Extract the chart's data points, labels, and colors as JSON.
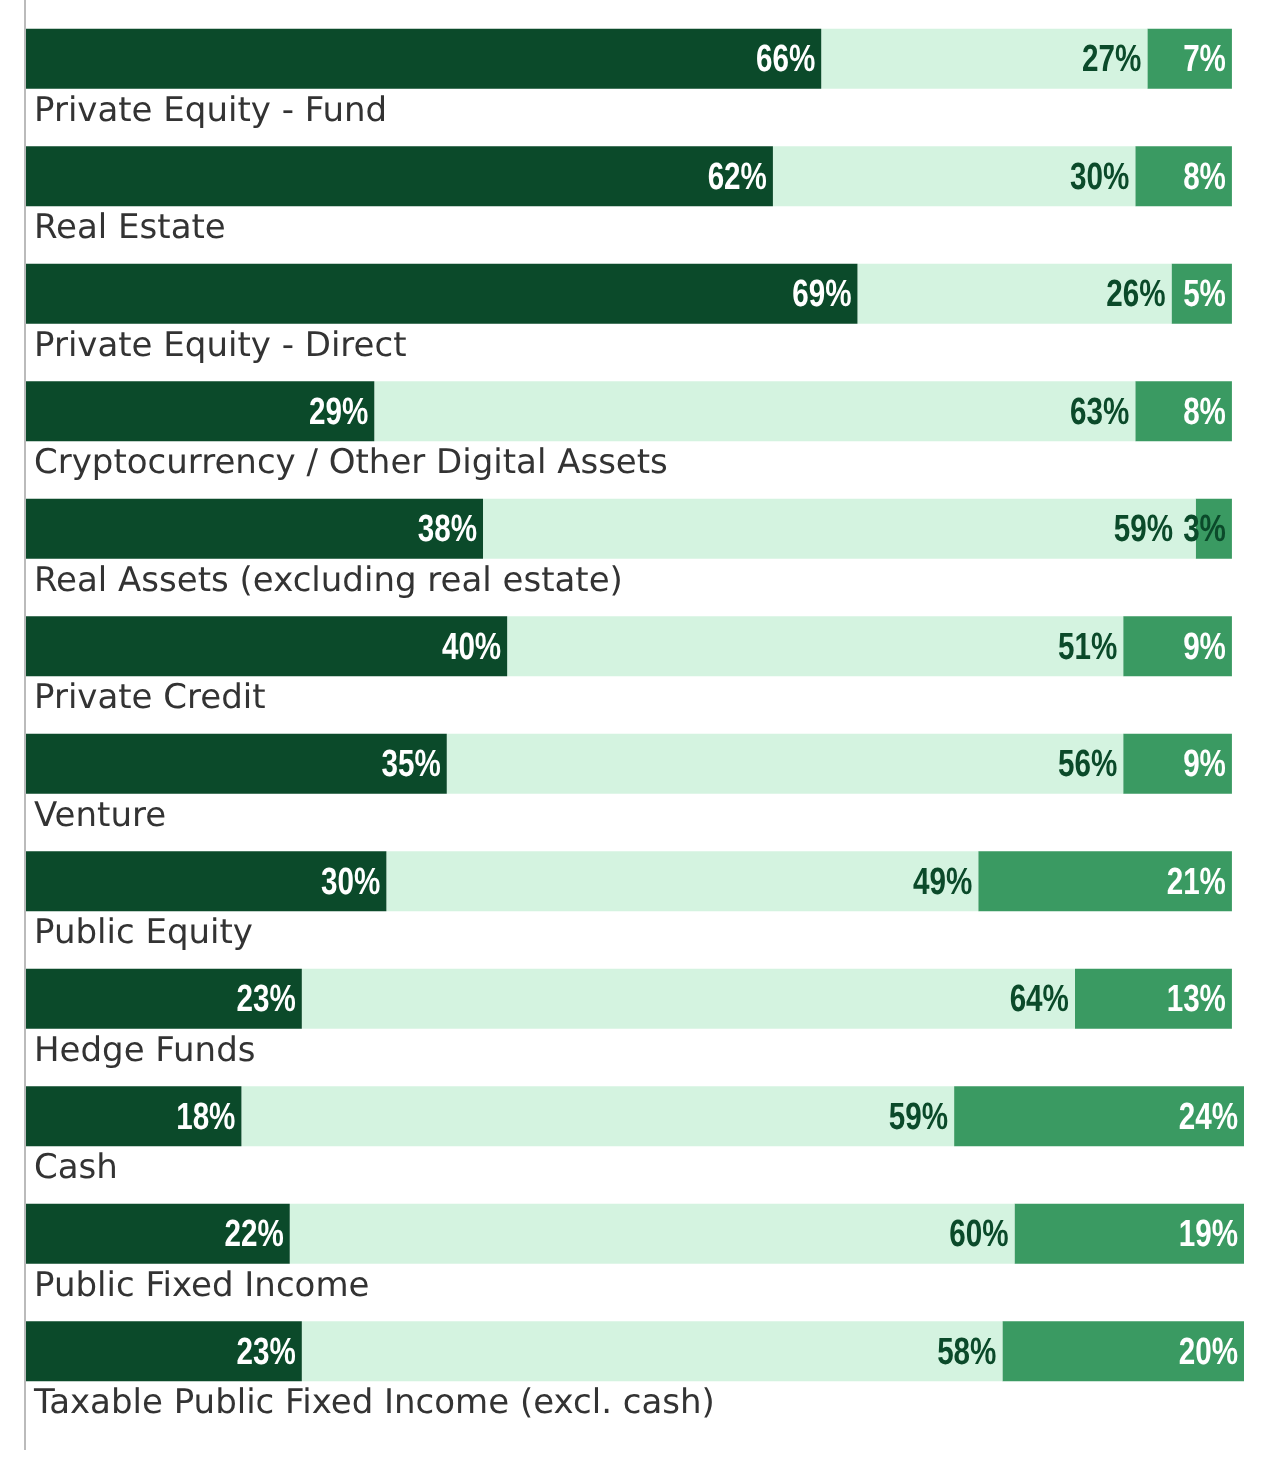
{
  "chart_data": {
    "type": "bar",
    "orientation": "horizontal",
    "stacked": true,
    "legend": false,
    "tick_labels": false,
    "categories": [
      "Private Equity - Fund",
      "Real Estate",
      "Private Equity - Direct",
      "Cryptocurrency / Other Digital Assets",
      "Real Assets (excluding real estate)",
      "Private Credit",
      "Venture",
      "Public Equity",
      "Hedge Funds",
      "Cash",
      "Public Fixed Income",
      "Taxable Public Fixed Income (excl. cash)"
    ],
    "series": [
      {
        "color": "#0b4a2a",
        "values": [
          66,
          62,
          69,
          29,
          38,
          40,
          35,
          30,
          23,
          18,
          22,
          23
        ],
        "value_labels": [
          "66%",
          "62%",
          "69%",
          "29%",
          "38%",
          "40%",
          "35%",
          "30%",
          "23%",
          "18%",
          "22%",
          "23%"
        ]
      },
      {
        "color": "#d4f3e0",
        "values": [
          27,
          30,
          26,
          63,
          59,
          51,
          56,
          49,
          64,
          59,
          60,
          58
        ],
        "value_labels": [
          "27%",
          "30%",
          "26%",
          "63%",
          "59%",
          "51%",
          "56%",
          "49%",
          "64%",
          "59%",
          "60%",
          "58%"
        ]
      },
      {
        "color": "#3a9a62",
        "values": [
          7,
          8,
          5,
          8,
          3,
          9,
          9,
          21,
          13,
          24,
          19,
          20
        ],
        "value_labels": [
          "7%",
          "8%",
          "5%",
          "8%",
          "3%",
          "9%",
          "9%",
          "21%",
          "13%",
          "24%",
          "19%",
          "20%"
        ]
      }
    ]
  }
}
